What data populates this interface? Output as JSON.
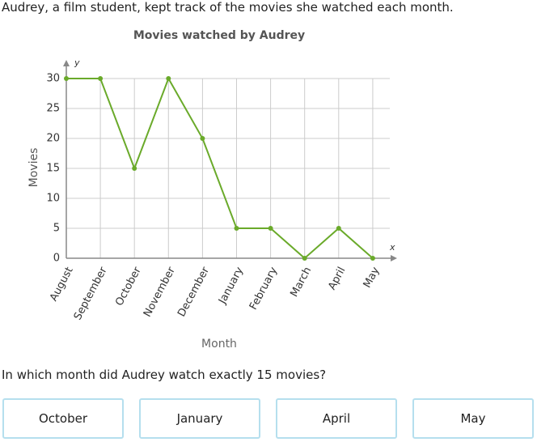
{
  "intro": "Audrey, a film student, kept track of the movies she watched each month.",
  "chart_data": {
    "type": "line",
    "title": "Movies watched by Audrey",
    "x_label": "Month",
    "y_label": "Movies",
    "x_axis_symbol": "x",
    "y_axis_symbol": "y",
    "categories": [
      "August",
      "September",
      "October",
      "November",
      "December",
      "January",
      "February",
      "March",
      "April",
      "May"
    ],
    "values": [
      30,
      30,
      15,
      30,
      20,
      5,
      5,
      0,
      5,
      0
    ],
    "color": "#6aaa2a",
    "ylim": [
      0,
      30
    ],
    "yticks": [
      0,
      5,
      10,
      15,
      20,
      25,
      30
    ],
    "grid": true
  },
  "question": "In which month did Audrey watch exactly 15 movies?",
  "choices": [
    "October",
    "January",
    "April",
    "May"
  ]
}
